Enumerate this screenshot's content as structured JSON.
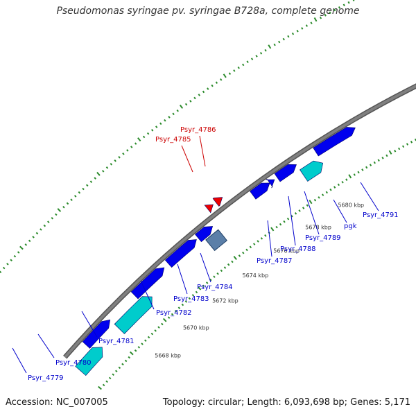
{
  "title": "Pseudomonas syringae pv. syringae B728a, complete genome",
  "footer": {
    "accession": "Accession: NC_007005",
    "topology": "Topology: circular; Length: 6,093,698 bp; Genes: 5,171"
  },
  "colors": {
    "backbone": "#808080",
    "cds_forward": "#0000ee",
    "cds_highlight": "#00cccc",
    "selected_gene": "#5b7fa8",
    "red_gene": "#ee0000",
    "tick": "#2a8a2a",
    "label_blue": "#0000cc",
    "label_red": "#cc0000"
  },
  "ticks": [
    {
      "label": "5668 kbp"
    },
    {
      "label": "5670 kbp"
    },
    {
      "label": "5672 kbp"
    },
    {
      "label": "5674 kbp"
    },
    {
      "label": "5676 kbp"
    },
    {
      "label": "5678 kbp"
    },
    {
      "label": "5680 kbp"
    }
  ],
  "genes": [
    {
      "name": "Psyr_4779",
      "color": "blue"
    },
    {
      "name": "Psyr_4780",
      "color": "blue"
    },
    {
      "name": "Psyr_4781",
      "color": "blue"
    },
    {
      "name": "Psyr_4782",
      "color": "blue"
    },
    {
      "name": "Psyr_4783",
      "color": "blue"
    },
    {
      "name": "Psyr_4784",
      "color": "blue"
    },
    {
      "name": "Psyr_4785",
      "color": "red"
    },
    {
      "name": "Psyr_4786",
      "color": "red"
    },
    {
      "name": "Psyr_4787",
      "color": "blue"
    },
    {
      "name": "Psyr_4788",
      "color": "blue"
    },
    {
      "name": "Psyr_4789",
      "color": "blue"
    },
    {
      "name": "pgk",
      "color": "blue"
    },
    {
      "name": "Psyr_4791",
      "color": "blue"
    }
  ]
}
